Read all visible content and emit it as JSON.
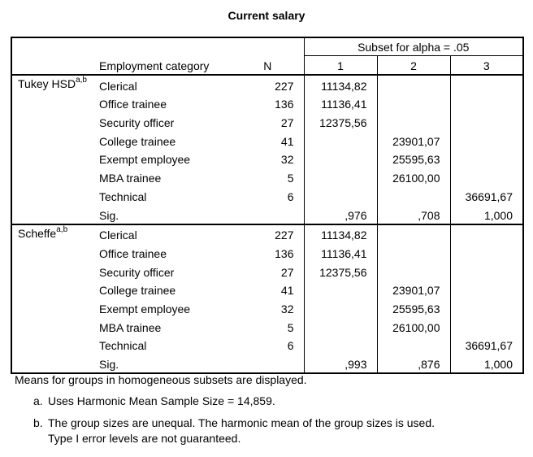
{
  "title": "Current salary",
  "header": {
    "category": "Employment category",
    "n": "N",
    "subset": "Subset for alpha = .05",
    "subsets": [
      "1",
      "2",
      "3"
    ]
  },
  "groups": [
    {
      "name": "Tukey HSD",
      "sup": "a,b",
      "rows": [
        {
          "label": "Clerical",
          "n": "227",
          "v": [
            "11134,82",
            "",
            ""
          ]
        },
        {
          "label": "Office trainee",
          "n": "136",
          "v": [
            "11136,41",
            "",
            ""
          ]
        },
        {
          "label": "Security officer",
          "n": "27",
          "v": [
            "12375,56",
            "",
            ""
          ]
        },
        {
          "label": "College trainee",
          "n": "41",
          "v": [
            "",
            "23901,07",
            ""
          ]
        },
        {
          "label": "Exempt employee",
          "n": "32",
          "v": [
            "",
            "25595,63",
            ""
          ]
        },
        {
          "label": "MBA trainee",
          "n": "5",
          "v": [
            "",
            "26100,00",
            ""
          ]
        },
        {
          "label": "Technical",
          "n": "6",
          "v": [
            "",
            "",
            "36691,67"
          ]
        },
        {
          "label": "Sig.",
          "n": "",
          "v": [
            ",976",
            ",708",
            "1,000"
          ]
        }
      ]
    },
    {
      "name": "Scheffe",
      "sup": "a,b",
      "rows": [
        {
          "label": "Clerical",
          "n": "227",
          "v": [
            "11134,82",
            "",
            ""
          ]
        },
        {
          "label": "Office trainee",
          "n": "136",
          "v": [
            "11136,41",
            "",
            ""
          ]
        },
        {
          "label": "Security officer",
          "n": "27",
          "v": [
            "12375,56",
            "",
            ""
          ]
        },
        {
          "label": "College trainee",
          "n": "41",
          "v": [
            "",
            "23901,07",
            ""
          ]
        },
        {
          "label": "Exempt employee",
          "n": "32",
          "v": [
            "",
            "25595,63",
            ""
          ]
        },
        {
          "label": "MBA trainee",
          "n": "5",
          "v": [
            "",
            "26100,00",
            ""
          ]
        },
        {
          "label": "Technical",
          "n": "6",
          "v": [
            "",
            "",
            "36691,67"
          ]
        },
        {
          "label": "Sig.",
          "n": "",
          "v": [
            ",993",
            ",876",
            "1,000"
          ]
        }
      ]
    }
  ],
  "footnotes": {
    "main": "Means for groups in homogeneous subsets are displayed.",
    "a_marker": "a.",
    "a": "Uses Harmonic Mean Sample Size = 14,859.",
    "b_marker": "b.",
    "b1": "The group sizes are unequal. The harmonic mean of the group sizes is used.",
    "b2": "Type I error levels are not guaranteed."
  }
}
